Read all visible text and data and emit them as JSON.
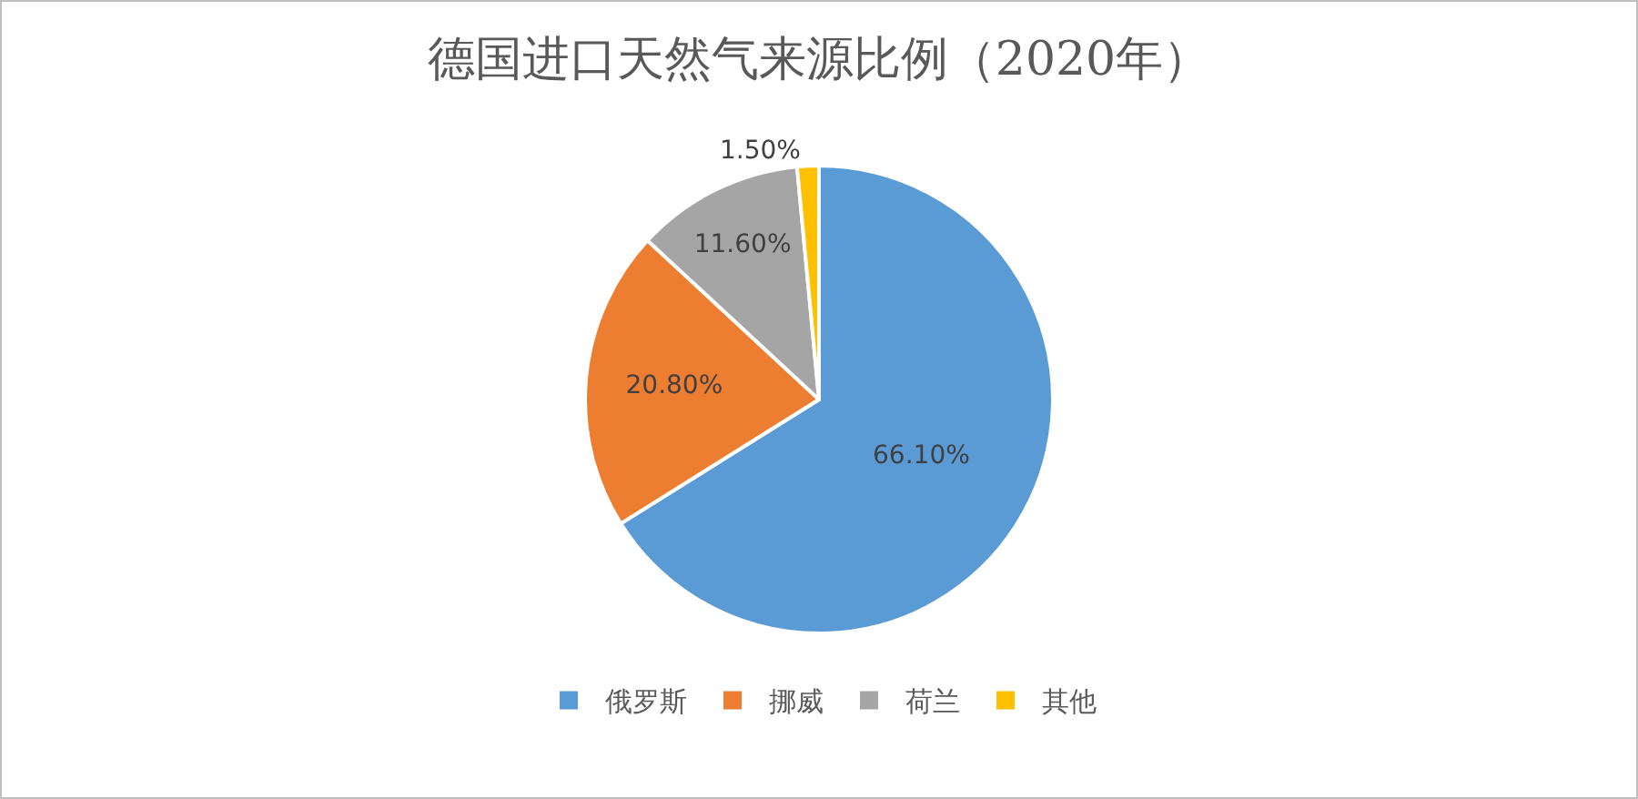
{
  "chart_data": {
    "type": "pie",
    "title": "德国进口天然气来源比例（2020年）",
    "categories": [
      "俄罗斯",
      "挪威",
      "荷兰",
      "其他"
    ],
    "values": [
      66.1,
      20.8,
      11.6,
      1.5
    ],
    "colors": [
      "#5b9bd5",
      "#ed7d31",
      "#a5a5a5",
      "#ffc000"
    ],
    "value_labels": [
      "66.10%",
      "20.80%",
      "11.60%",
      "1.50%"
    ],
    "legend": "bottom"
  }
}
